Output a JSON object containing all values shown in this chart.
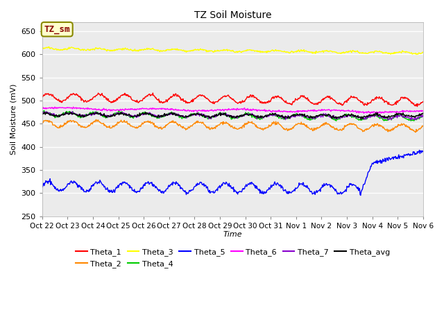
{
  "title": "TZ Soil Moisture",
  "xlabel": "Time",
  "ylabel": "Soil Moisture (mV)",
  "ylim": [
    250,
    670
  ],
  "yticks": [
    250,
    300,
    350,
    400,
    450,
    500,
    550,
    600,
    650
  ],
  "fig_facecolor": "#ffffff",
  "plot_facecolor": "#ebebeb",
  "legend_box_color": "#ffffcc",
  "legend_box_edge_color": "#888800",
  "legend_box_text": "TZ_sm",
  "legend_box_text_color": "#880000",
  "colors": {
    "Theta_1": "#ff0000",
    "Theta_2": "#ff8800",
    "Theta_3": "#ffff00",
    "Theta_4": "#00cc00",
    "Theta_5": "#0000ff",
    "Theta_6": "#ff00ff",
    "Theta_7": "#8800cc",
    "Theta_avg": "#000000"
  },
  "n_points": 720,
  "n_days": 15,
  "xtick_labels": [
    "Oct 22",
    "Oct 23",
    "Oct 24",
    "Oct 25",
    "Oct 26",
    "Oct 27",
    "Oct 28",
    "Oct 29",
    "Oct 30",
    "Oct 31",
    "Nov 1",
    "Nov 2",
    "Nov 3",
    "Nov 4",
    "Nov 5",
    "Nov 6"
  ],
  "legend_row1": [
    "Theta_1",
    "Theta_2",
    "Theta_3",
    "Theta_4",
    "Theta_5",
    "Theta_6"
  ],
  "legend_row2": [
    "Theta_7",
    "Theta_avg"
  ]
}
